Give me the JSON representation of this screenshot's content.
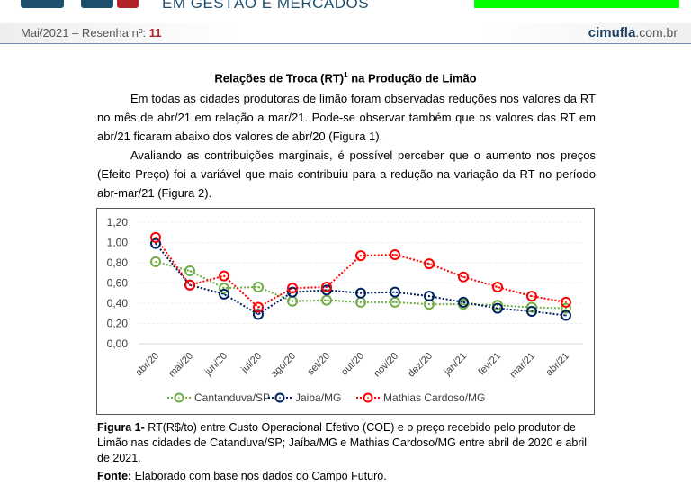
{
  "header": {
    "tagline": "EM GESTÃO E MERCADOS",
    "issue_prefix": "Mai/2021 – Resenha nº: ",
    "issue_number": "11",
    "site_bold": "cimufla",
    "site_rest": ".com.br",
    "brand_colors": {
      "blue": "#1d4f6e",
      "red": "#b32428",
      "green_bar": "#00ff00"
    }
  },
  "article": {
    "title_main": "Relações de Troca (RT)",
    "title_sup": "1",
    "title_rest": " na Produção de Limão",
    "paragraph1": "Em todas as cidades produtoras de limão foram observadas reduções nos valores da RT no mês de abr/21 em relação a mar/21. Pode-se observar também que os valores das RT em abr/21 ficaram abaixo dos valores de abr/20 (Figura 1).",
    "paragraph2": "Avaliando as contribuições marginais, é possível perceber que o aumento nos preços (Efeito Preço) foi a variável que mais contribuiu para a redução na variação da RT no período abr-mar/21 (Figura 2)."
  },
  "caption": {
    "label": "Figura 1-",
    "text": " RT(R$/to) entre Custo Operacional Efetivo (COE) e o preço recebido pelo produtor de Limão nas cidades de Catanduva/SP; Jaíba/MG e Mathias Cardoso/MG entre abril de 2020 e abril de 2021.",
    "source_label": "Fonte:",
    "source_text": " Elaborado com base nos dados do Campo Futuro."
  },
  "chart_data": {
    "type": "line",
    "title": "",
    "xlabel": "",
    "ylabel": "",
    "categories": [
      "abr/20",
      "mai/20",
      "jun/20",
      "jul/20",
      "ago/20",
      "set/20",
      "out/20",
      "nov/20",
      "dez/20",
      "jan/21",
      "fev/21",
      "mar/21",
      "abr/21"
    ],
    "ylim": [
      0,
      1.2
    ],
    "yticks": [
      0,
      0.2,
      0.4,
      0.6,
      0.8,
      1.0,
      1.2
    ],
    "ytick_labels": [
      "0,00",
      "0,20",
      "0,40",
      "0,60",
      "0,80",
      "1,00",
      "1,20"
    ],
    "grid": true,
    "legend_position": "bottom",
    "series": [
      {
        "name": "Cantanduva/SP",
        "color": "#70ad47",
        "values": [
          0.81,
          0.72,
          0.55,
          0.56,
          0.42,
          0.43,
          0.41,
          0.41,
          0.39,
          0.39,
          0.38,
          0.36,
          0.35
        ]
      },
      {
        "name": "Jaiba/MG",
        "color": "#002060",
        "values": [
          0.99,
          0.58,
          0.49,
          0.29,
          0.51,
          0.53,
          0.5,
          0.51,
          0.47,
          0.41,
          0.35,
          0.32,
          0.28
        ]
      },
      {
        "name": "Mathias Cardoso/MG",
        "color": "#ff0000",
        "values": [
          1.05,
          0.58,
          0.67,
          0.36,
          0.55,
          0.56,
          0.87,
          0.88,
          0.79,
          0.66,
          0.56,
          0.47,
          0.41
        ]
      }
    ]
  }
}
